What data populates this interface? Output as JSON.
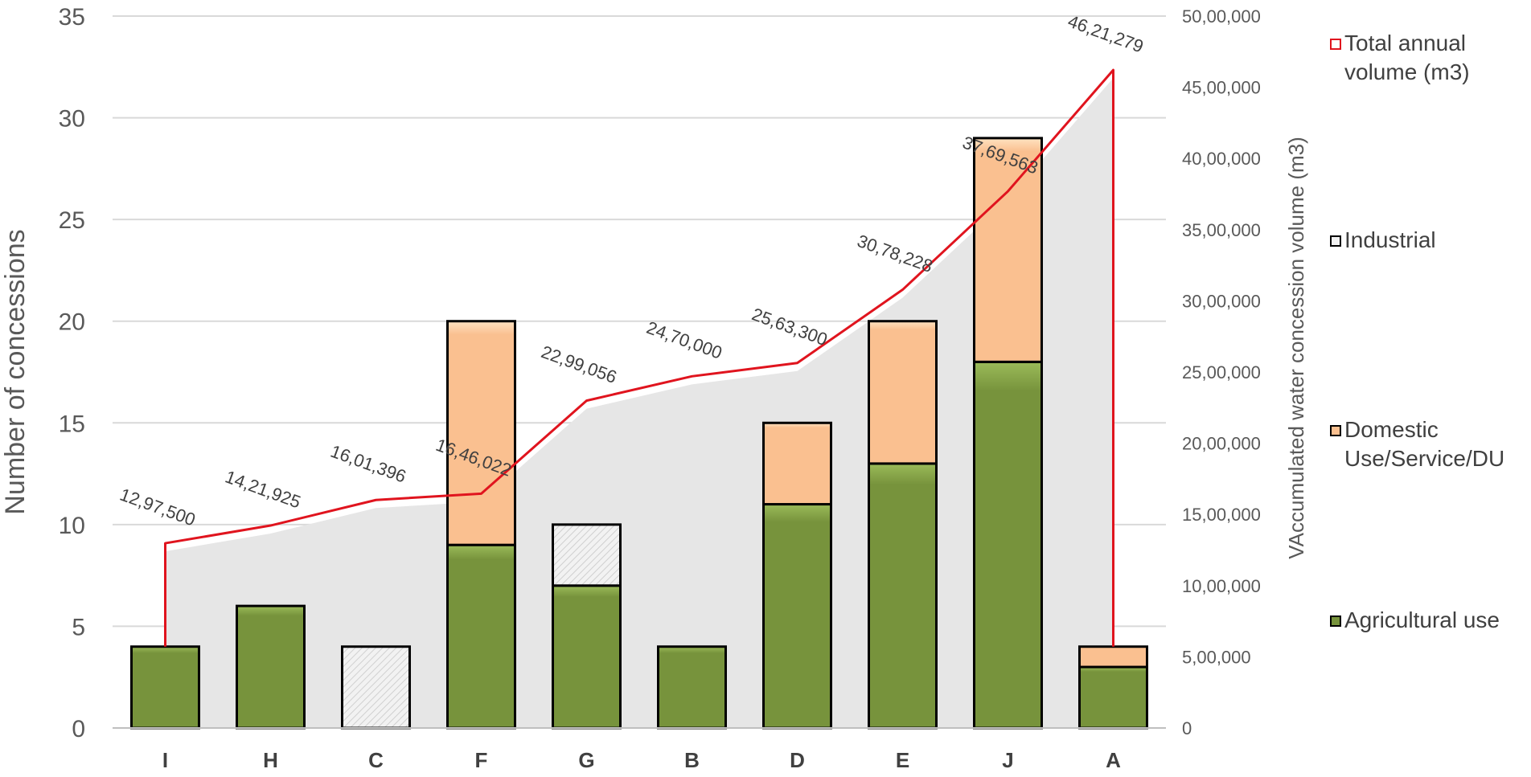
{
  "chart_data": {
    "type": "bar",
    "stacked": true,
    "categories": [
      "I",
      "H",
      "C",
      "F",
      "G",
      "B",
      "D",
      "E",
      "J",
      "A"
    ],
    "series": [
      {
        "name": "Agricultural use",
        "type": "bar",
        "axis": "left",
        "color": "#77933C",
        "values": [
          4,
          6,
          0,
          9,
          7,
          4,
          11,
          13,
          18,
          3
        ]
      },
      {
        "name": "Domestic Use/Service/DU",
        "type": "bar",
        "axis": "left",
        "color": "#FAC090",
        "values": [
          0,
          0,
          0,
          11,
          0,
          0,
          4,
          7,
          11,
          1
        ]
      },
      {
        "name": "Industrial",
        "type": "bar",
        "axis": "left",
        "color": "#F2F2F2",
        "values": [
          0,
          0,
          4,
          0,
          3,
          0,
          0,
          0,
          0,
          0
        ]
      },
      {
        "name": "Total annual volume (m3)",
        "type": "line",
        "axis": "right",
        "color": "#E0141E",
        "values": [
          1297500,
          1421925,
          1601396,
          1646022,
          2299056,
          2470000,
          2563300,
          3078228,
          3769563,
          4621279
        ],
        "labels": [
          "12,97,500",
          "14,21,925",
          "16,01,396",
          "16,46,022",
          "22,99,056",
          "24,70,000",
          "25,63,300",
          "30,78,228",
          "37,69,563",
          "46,21,279"
        ]
      }
    ],
    "y_left": {
      "label": "Number of concessions",
      "min": 0,
      "max": 35,
      "step": 5,
      "ticks": [
        "0",
        "5",
        "10",
        "15",
        "20",
        "25",
        "30",
        "35"
      ]
    },
    "y_right": {
      "label": "VAccumulated water concession volume (m3)",
      "min": 0,
      "max": 5000000,
      "step": 500000,
      "ticks": [
        "0",
        "5,00,000",
        "10,00,000",
        "15,00,000",
        "20,00,000",
        "25,00,000",
        "30,00,000",
        "35,00,000",
        "40,00,000",
        "45,00,000",
        "50,00,000"
      ]
    },
    "area_color": "#E6E6E6",
    "grid": true,
    "legend_position": "right",
    "legend": [
      "Total annual volume (m3)",
      "Industrial",
      "Domestic Use/Service/DU",
      "Agricultural use"
    ]
  }
}
